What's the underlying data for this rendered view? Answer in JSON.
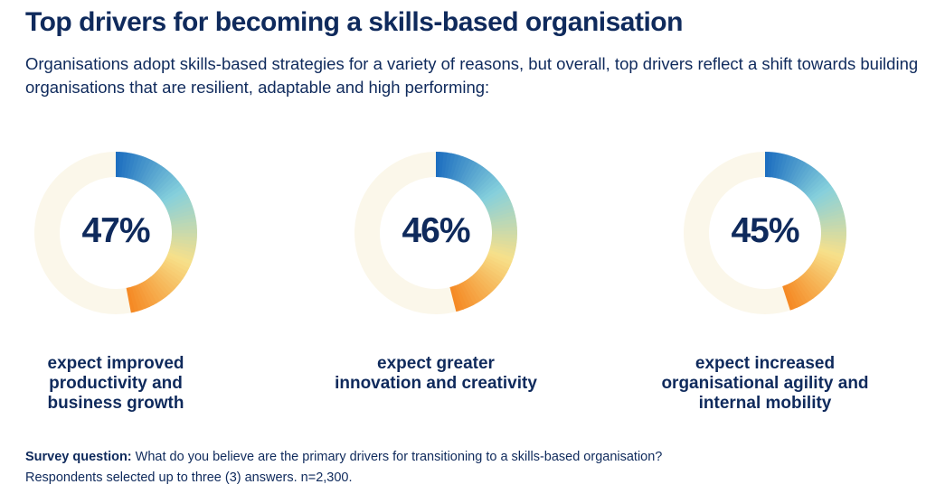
{
  "title": "Top drivers for becoming a skills-based organisation",
  "subtitle": "Organisations adopt skills-based strategies for a variety of reasons, but overall, top drivers reflect a shift towards building organisations that are resilient, adaptable and high performing:",
  "colors": {
    "track": "#fbf7ea",
    "gradient_start": "#1e6fc0",
    "gradient_mid1": "#86d0dc",
    "gradient_mid2": "#f7e08a",
    "gradient_end": "#f58a25",
    "text": "#0f2a5c"
  },
  "chart_data": {
    "type": "pie",
    "style": "donut",
    "title": "",
    "items": [
      {
        "value": 47,
        "label": "47%",
        "caption": "expect improved\nproductivity and\nbusiness growth"
      },
      {
        "value": 46,
        "label": "46%",
        "caption": "expect greater\ninnovation and creativity"
      },
      {
        "value": 45,
        "label": "45%",
        "caption": "expect increased\norganisational agility and\ninternal mobility"
      }
    ]
  },
  "footnote": {
    "lead": "Survey question:",
    "text": " What do you believe are the primary drivers for transitioning to a skills-based organisation? Respondents selected up to three (3) answers. n=2,300."
  }
}
